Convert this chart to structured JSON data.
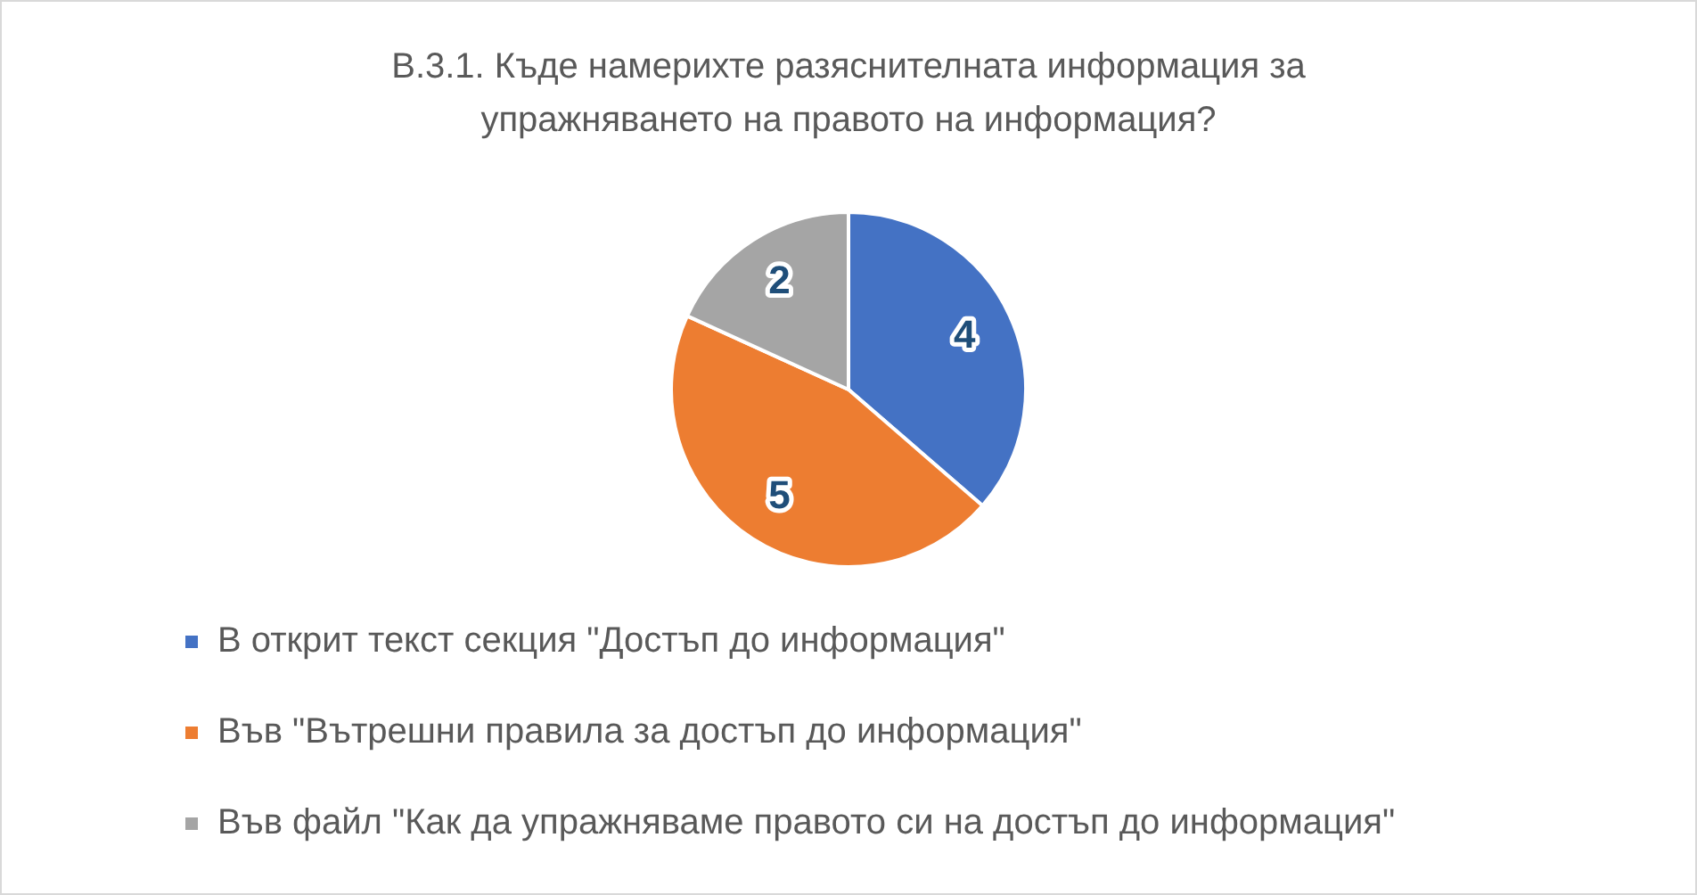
{
  "chart_data": {
    "type": "pie",
    "title": "В.3.1. Къде намерихте разяснителната информация за упражняването на правото на информация?",
    "categories": [
      "В открит текст секция \"Достъп до информация\"",
      "Във \"Вътрешни правила за достъп до информация\"",
      "Във файл \"Как да упражняваме правото си на достъп до информация\""
    ],
    "values": [
      4,
      5,
      2
    ],
    "colors": [
      "#4472c4",
      "#ed7d31",
      "#a5a5a5"
    ],
    "data_labels": true,
    "legend": "bottom"
  }
}
